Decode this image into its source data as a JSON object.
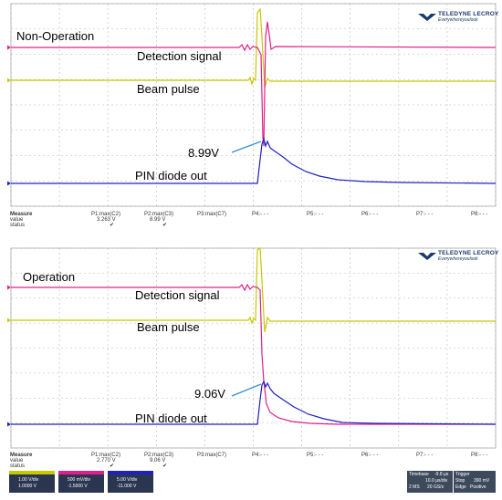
{
  "scopes": [
    {
      "id": "top",
      "mode_label": "Non-Operation",
      "traces": {
        "detection": "Detection signal",
        "beam": "Beam pulse",
        "pin": "PIN diode out"
      },
      "peak_annotation": "8.99V",
      "measure": {
        "header": "Measure",
        "row_value": "value",
        "row_status": "status",
        "params": [
          {
            "name": "P1:max(C2)",
            "value": "3.263 V",
            "status": "✔"
          },
          {
            "name": "P2:max(C3)",
            "value": "8.99 V",
            "status": "✔"
          },
          {
            "name": "P3:max(C7)",
            "value": "",
            "status": ""
          },
          {
            "name": "P4:- - -",
            "value": "",
            "status": ""
          },
          {
            "name": "P5:- - -",
            "value": "",
            "status": ""
          },
          {
            "name": "P6:- - -",
            "value": "",
            "status": ""
          },
          {
            "name": "P7:- - -",
            "value": "",
            "status": ""
          },
          {
            "name": "P8:- - -",
            "value": "",
            "status": ""
          }
        ]
      }
    },
    {
      "id": "bottom",
      "mode_label": "Operation",
      "traces": {
        "detection": "Detection signal",
        "beam": "Beam pulse",
        "pin": "PIN diode out"
      },
      "peak_annotation": "9.06V",
      "measure": {
        "header": "Measure",
        "row_value": "value",
        "row_status": "status",
        "params": [
          {
            "name": "P1:max(C2)",
            "value": "2.770 V",
            "status": "✔"
          },
          {
            "name": "P2:max(C3)",
            "value": "9.06 V",
            "status": "✔"
          },
          {
            "name": "P3:max(C7)",
            "value": "",
            "status": ""
          },
          {
            "name": "P4:- - -",
            "value": "",
            "status": ""
          },
          {
            "name": "P5:- - -",
            "value": "",
            "status": ""
          },
          {
            "name": "P6:- - -",
            "value": "",
            "status": ""
          },
          {
            "name": "P7:- - -",
            "value": "",
            "status": ""
          },
          {
            "name": "P8:- - -",
            "value": "",
            "status": ""
          }
        ]
      }
    }
  ],
  "logo": {
    "brand": "TELEDYNE LECROY",
    "tagline": "Everywhereyoulook"
  },
  "channel_boxes": [
    {
      "scale": "1.00 V/div",
      "offset": "1.0000 V",
      "color": "#c8c800"
    },
    {
      "scale": "500 mV/div",
      "offset": "-1.5000 V",
      "color": "#e0208a"
    },
    {
      "scale": "5.00 V/div",
      "offset": "-11.000 V",
      "color": "#2020c0"
    }
  ],
  "timebase": {
    "label": "Timebase",
    "value": "-9.8 µs",
    "rate": "10.0 µs/div",
    "memory": "2 MS",
    "sample": "20 GS/s"
  },
  "trigger": {
    "label": "Trigger",
    "mode": "Stop",
    "level": "390 mV",
    "type": "Edge",
    "slope": "Positive"
  },
  "colors": {
    "detection": "#e0208a",
    "beam": "#c8c800",
    "pin": "#2020c0",
    "annotation": "#3a8fd0",
    "grid": "#b8b8b8"
  }
}
